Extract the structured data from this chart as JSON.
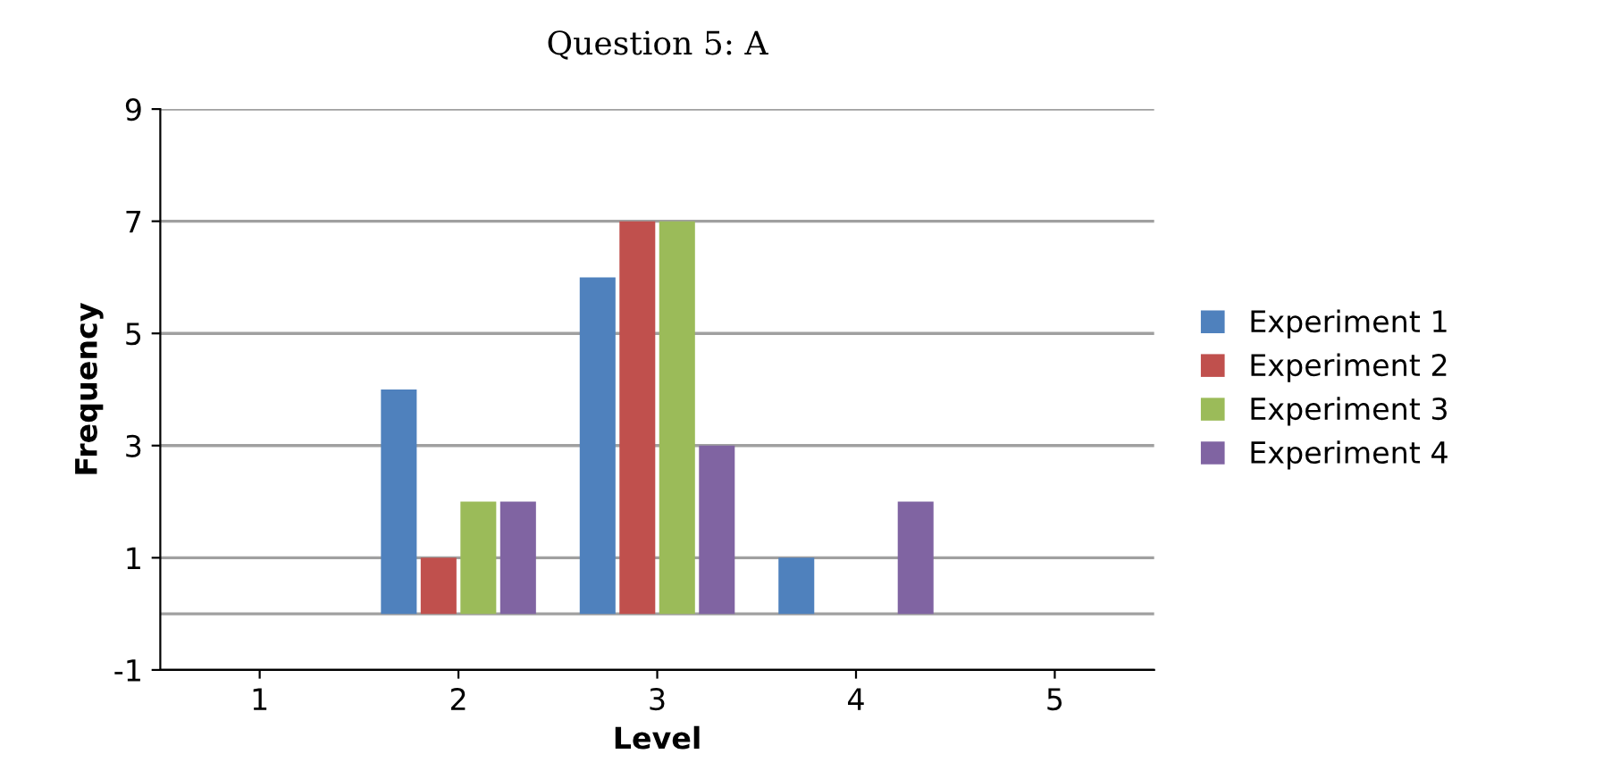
{
  "chart_data": {
    "type": "bar",
    "title": "Question 5: A",
    "xlabel": "Level",
    "ylabel": "Frequency",
    "categories": [
      "1",
      "2",
      "3",
      "4",
      "5"
    ],
    "series": [
      {
        "name": "Experiment 1",
        "color": "#4f81bd",
        "values": [
          0,
          4,
          6,
          1,
          0
        ]
      },
      {
        "name": "Experiment 2",
        "color": "#c0504d",
        "values": [
          0,
          1,
          7,
          0,
          0
        ]
      },
      {
        "name": "Experiment 3",
        "color": "#9bbb59",
        "values": [
          0,
          2,
          7,
          0,
          0
        ]
      },
      {
        "name": "Experiment 4",
        "color": "#8064a2",
        "values": [
          0,
          2,
          3,
          2,
          0
        ]
      }
    ],
    "ylim": [
      -1,
      9
    ],
    "yticks": [
      -1,
      1,
      3,
      5,
      7,
      9
    ],
    "grid": "y",
    "legend": "right"
  }
}
